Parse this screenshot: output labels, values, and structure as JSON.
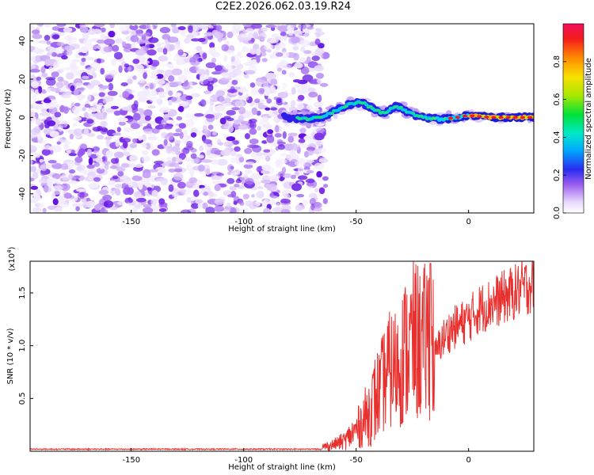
{
  "title": "C2E2.2026.062.03.19.R24",
  "chart_data": [
    {
      "type": "heatmap",
      "xlabel": "Height of straight line (km)",
      "ylabel": "Frequency (Hz)",
      "xlim": [
        -195,
        29
      ],
      "ylim": [
        -50,
        49
      ],
      "x_ticks": [
        -150,
        -100,
        -50,
        0
      ],
      "y_ticks": [
        40,
        20,
        0,
        -20,
        -40
      ],
      "noise_region_x": [
        -195,
        -65
      ],
      "signal_track": {
        "x": [
          -82,
          -72,
          -65,
          -55,
          -48,
          -43,
          -38,
          -32,
          -26,
          -20,
          -12,
          -5,
          0,
          10,
          20,
          29
        ],
        "y": [
          0,
          -1,
          0,
          6,
          8,
          5,
          2,
          6,
          2,
          0,
          -1,
          0,
          1,
          0,
          0,
          0
        ]
      },
      "colorbar": {
        "label": "Normalized spectral amplitude",
        "ticks": [
          "0.0",
          "0.2",
          "0.4",
          "0.6",
          "0.8"
        ],
        "range": [
          0,
          1
        ]
      }
    },
    {
      "type": "line",
      "xlabel": "Height of straight line (km)",
      "ylabel": "SNR (10 * v/v)",
      "scale_label": "(x10",
      "scale_exp": "4",
      "scale_close": ")",
      "xlim": [
        -195,
        29
      ],
      "ylim": [
        0,
        1.8
      ],
      "x_ticks": [
        -150,
        -100,
        -50,
        0
      ],
      "y_ticks": [
        "0.5",
        "1.0",
        "1.5"
      ],
      "y_tick_values": [
        0.5,
        1.0,
        1.5
      ],
      "color": "#e8302e",
      "series": [
        {
          "x": [
            -195,
            -150,
            -100,
            -70,
            -62,
            -55,
            -50,
            -45,
            -40,
            -36,
            -32,
            -28,
            -24,
            -20,
            -17,
            -15,
            -12,
            -8,
            -4,
            0,
            5,
            10,
            15,
            20,
            25,
            29
          ],
          "y": [
            0.02,
            0.02,
            0.02,
            0.03,
            0.05,
            0.1,
            0.2,
            0.35,
            0.55,
            0.75,
            0.8,
            0.95,
            1.05,
            1.0,
            1.15,
            0.9,
            1.05,
            1.15,
            1.2,
            1.25,
            1.35,
            1.4,
            1.45,
            1.5,
            1.55,
            1.6
          ]
        }
      ]
    }
  ]
}
